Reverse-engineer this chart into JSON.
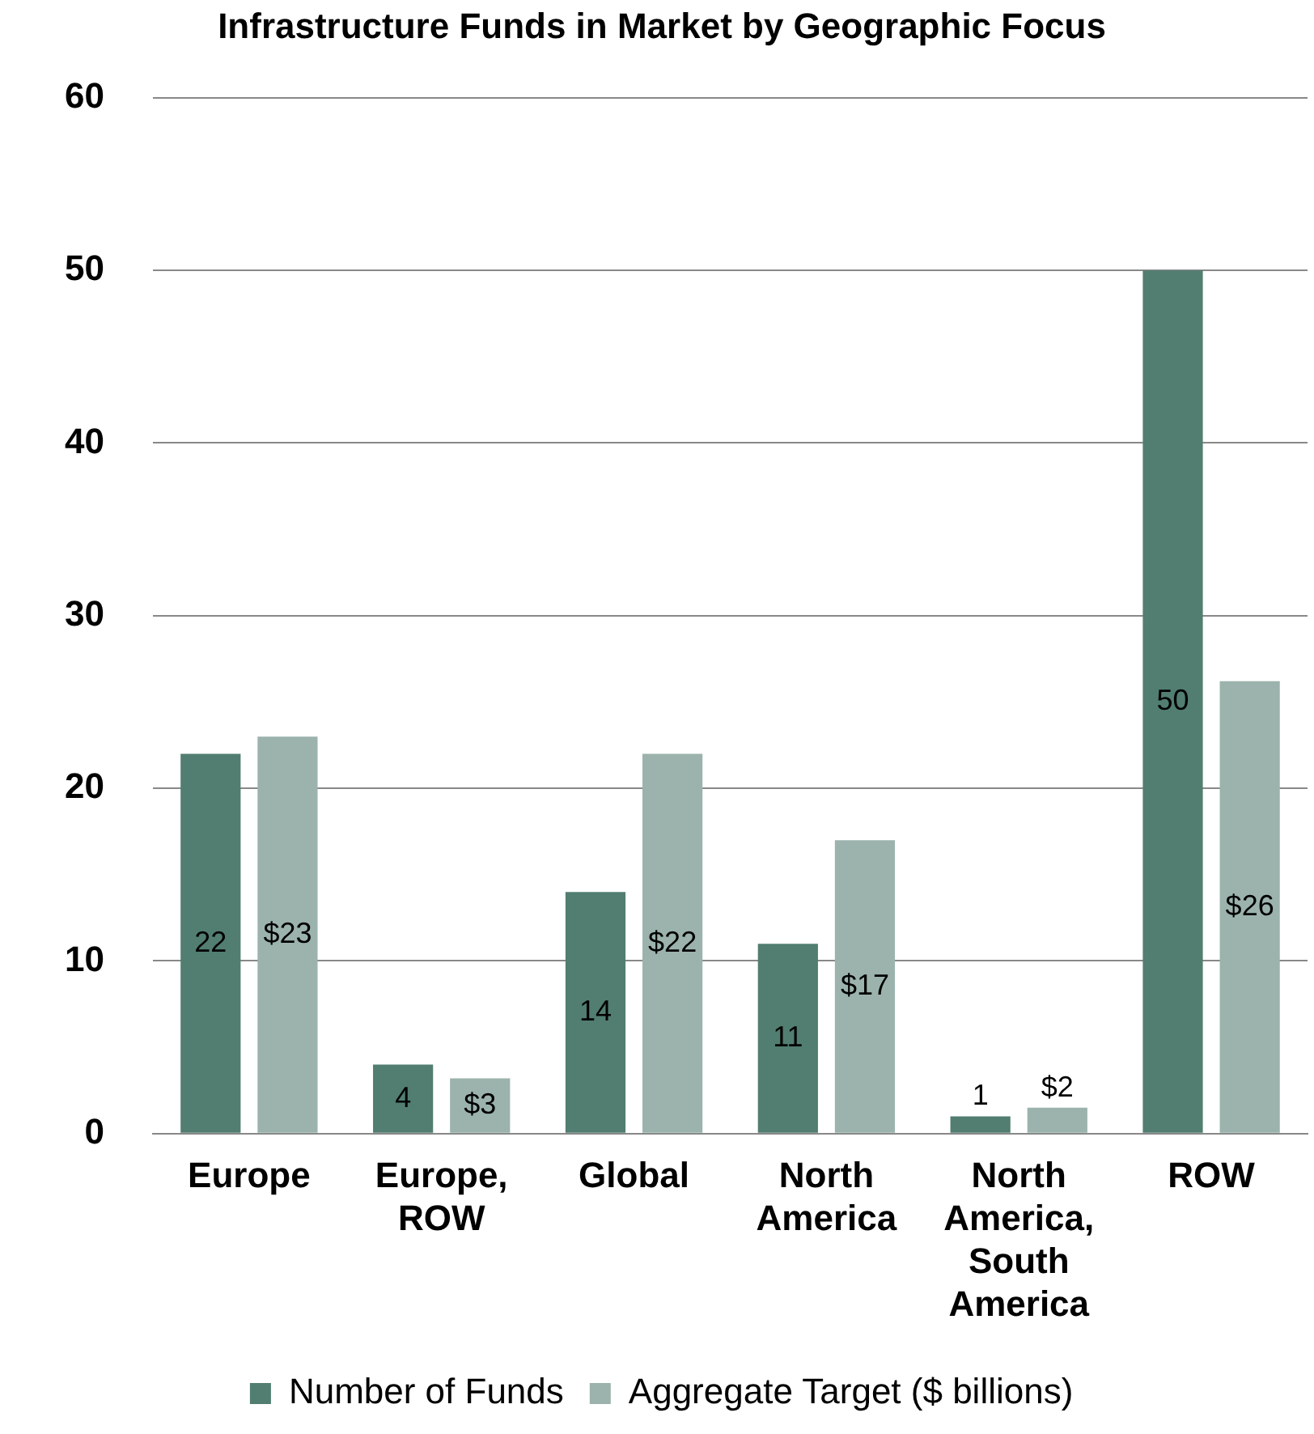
{
  "chart_data": {
    "type": "bar",
    "title": "Infrastructure Funds in Market by Geographic Focus",
    "categories": [
      "Europe",
      "Europe, ROW",
      "Global",
      "North America",
      "North America, South America",
      "ROW"
    ],
    "series": [
      {
        "name": "Number of Funds",
        "color": "#517e70",
        "values": [
          22,
          4,
          14,
          11,
          1,
          50
        ],
        "value_labels": [
          "22",
          "4",
          "14",
          "11",
          "1",
          "50"
        ]
      },
      {
        "name": "Aggregate Target ($ billions)",
        "color": "#9bb3ac",
        "values": [
          23,
          3.2,
          22,
          17,
          1.5,
          26.2
        ],
        "value_labels": [
          "$23",
          "$3",
          "$22",
          "$17",
          "$2",
          "$26"
        ]
      }
    ],
    "ylim": [
      0,
      60
    ],
    "yticks": [
      0,
      10,
      20,
      30,
      40,
      50,
      60
    ],
    "grid": "y",
    "legend": "bottom"
  }
}
